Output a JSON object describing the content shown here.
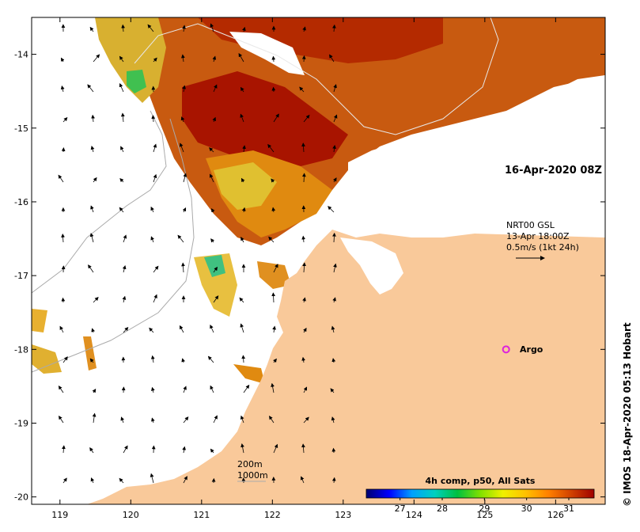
{
  "map": {
    "lon_range": [
      118.6,
      126.7
    ],
    "lat_range": [
      -20.1,
      -13.5
    ],
    "lon_ticks": [
      "119",
      "120",
      "121",
      "122",
      "123",
      "124",
      "125",
      "126"
    ],
    "lat_ticks": [
      "-14",
      "-15",
      "-16",
      "-17",
      "-18",
      "-19",
      "-20"
    ],
    "colors": {
      "land": "#f9c99a",
      "ocean": "#ffffff",
      "frame": "#000000",
      "contour": "#aaaaaa"
    }
  },
  "annotations": {
    "date": "16-Apr-2020 08Z",
    "current_product": "NRT00 GSL",
    "current_time": "13-Apr 18:00Z",
    "vector_scale": "0.5m/s (1kt 24h)",
    "argo_label": "Argo",
    "argo_marker_color": "#dd22dd",
    "contour_200": "200m",
    "contour_1000": "1000m",
    "credit": "© IMOS 18-Apr-2020 05:13 Hobart"
  },
  "colorbar": {
    "title": "4h comp, p50, All Sats",
    "min": 26.2,
    "max": 31.6,
    "ticks": [
      "27",
      "28",
      "29",
      "30",
      "31"
    ],
    "stops": [
      "#000070",
      "#0000ff",
      "#00a0ff",
      "#00d0c0",
      "#00c040",
      "#80e000",
      "#f0f000",
      "#ffc000",
      "#ff8000",
      "#d04000",
      "#a00000"
    ]
  },
  "argo": {
    "lon": 125.3,
    "lat": -18.0
  }
}
